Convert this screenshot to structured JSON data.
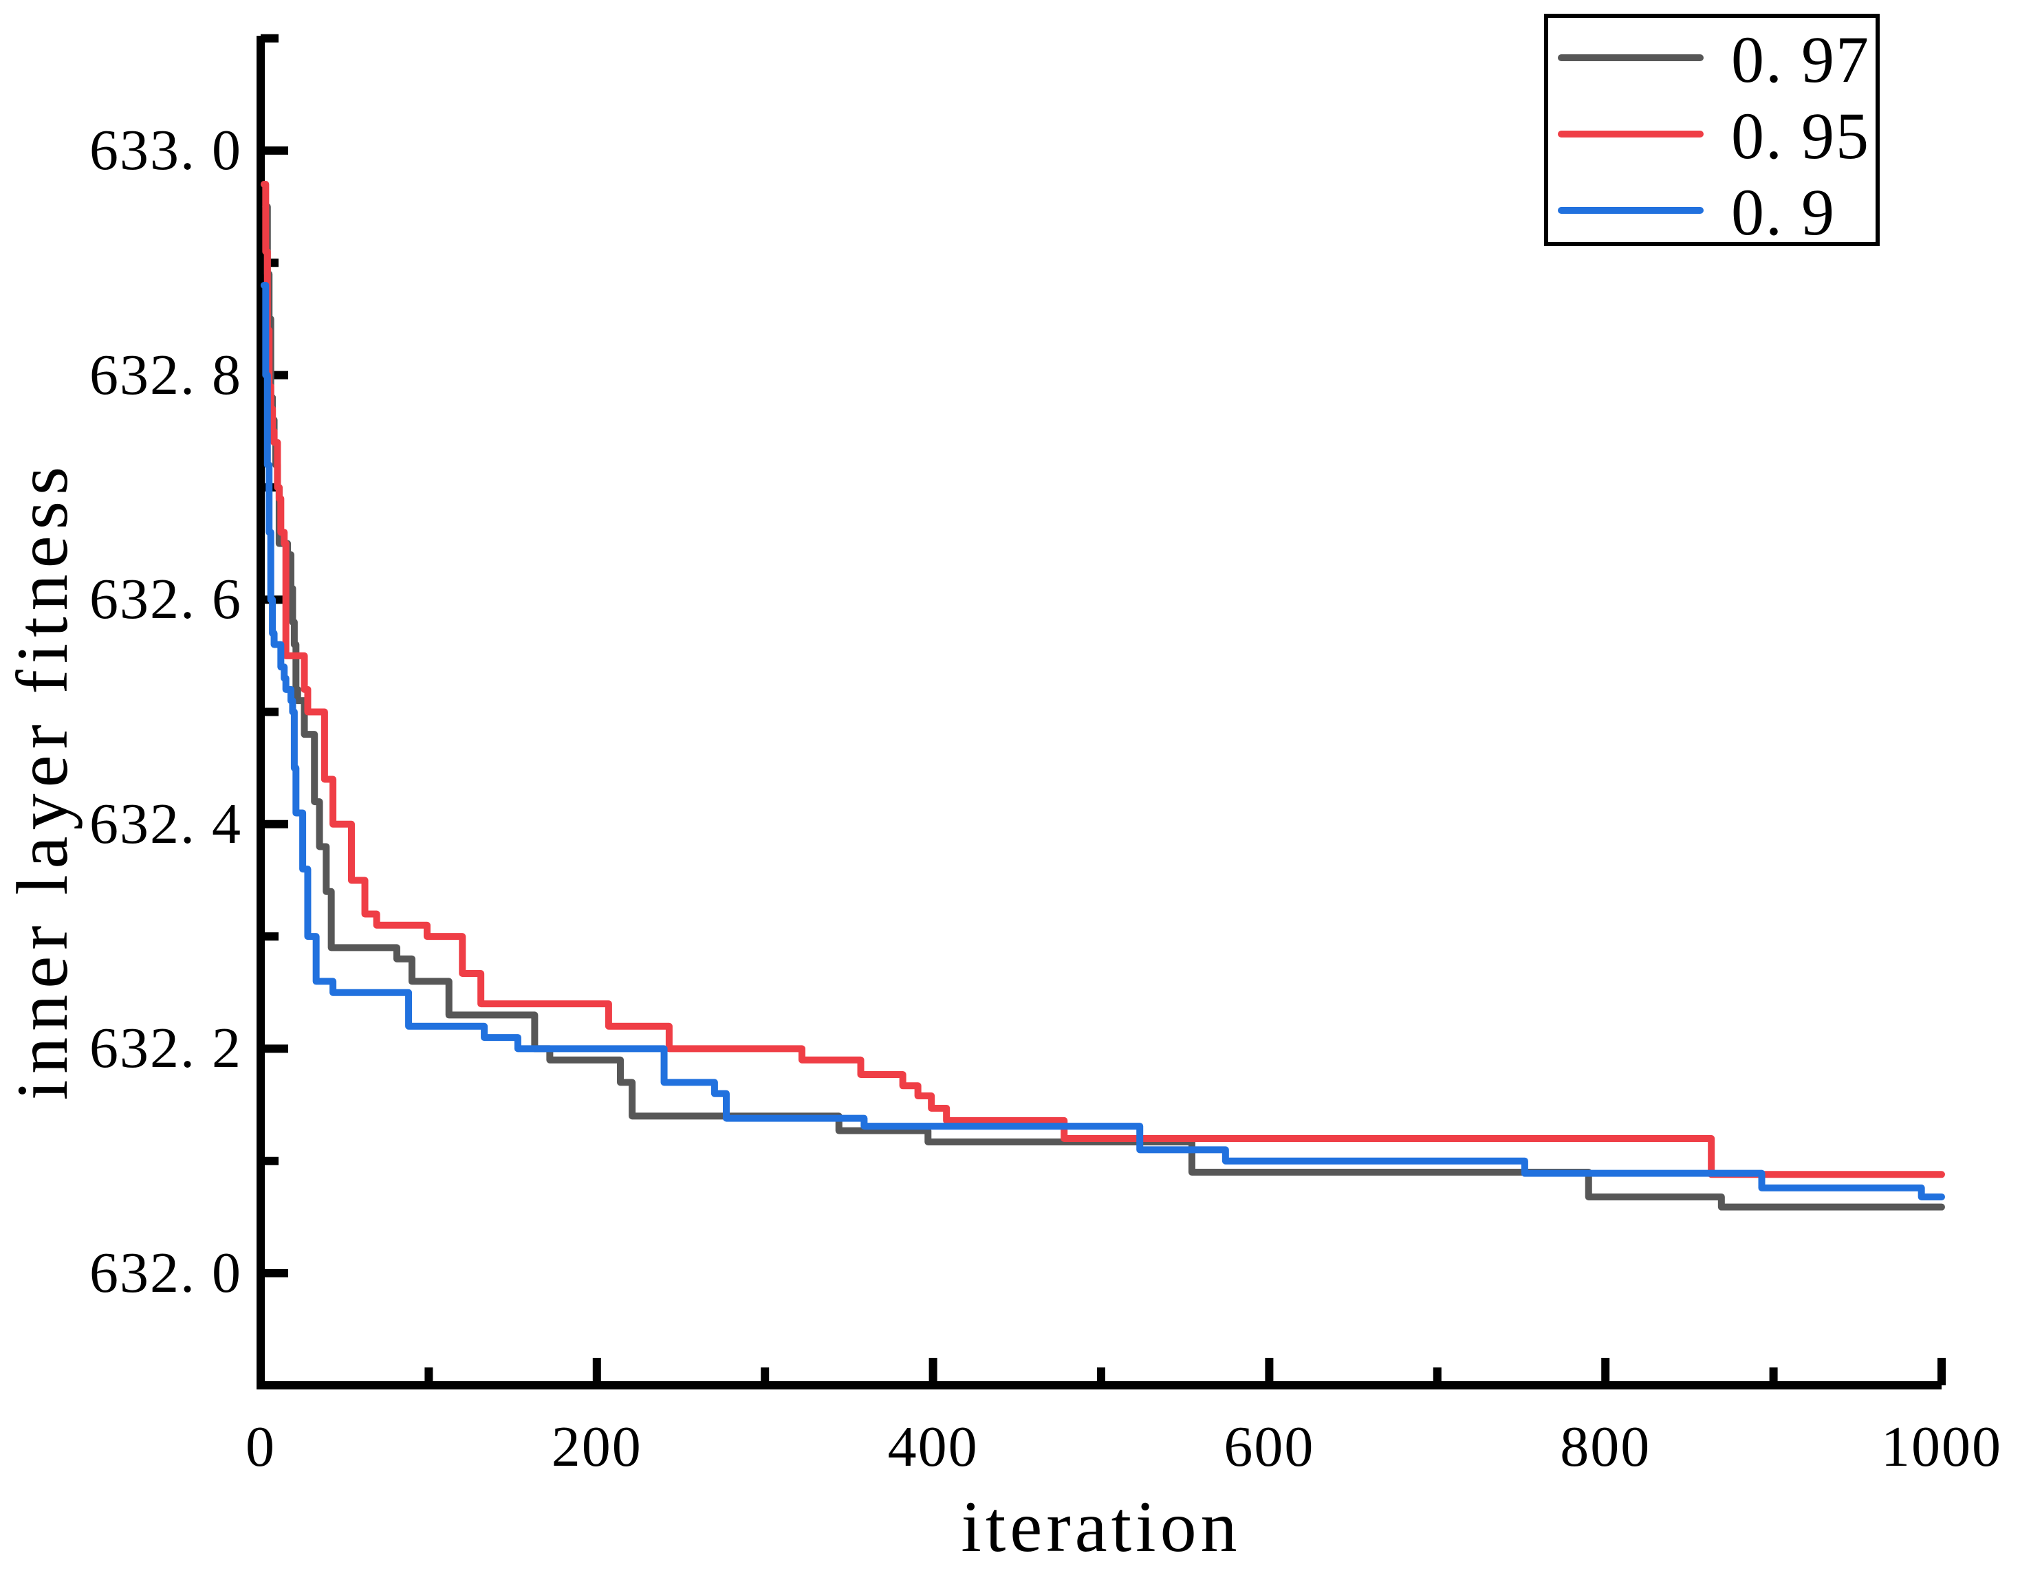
{
  "chart_data": {
    "type": "line",
    "step_mode": "post",
    "title": "",
    "xlabel": "iteration",
    "ylabel": "inner layer fitness",
    "xlim": [
      0,
      1000
    ],
    "ylim": [
      631.9,
      633.1
    ],
    "grid": false,
    "legend_position": "top-right",
    "axis_color": "#000000",
    "x_major_ticks": [
      0,
      200,
      400,
      600,
      800,
      1000
    ],
    "x_tick_labels": [
      "0",
      "200",
      "400",
      "600",
      "800",
      "1000"
    ],
    "x_minor_ticks": [
      100,
      300,
      500,
      700,
      900
    ],
    "y_major_ticks": [
      633.0,
      632.8,
      632.6,
      632.4,
      632.2,
      632.0
    ],
    "y_tick_labels": [
      "633. 0",
      "632. 8",
      "632. 6",
      "632. 4",
      "632. 2",
      "632. 0"
    ],
    "y_minor_ticks": [
      633.1,
      632.9,
      632.7,
      632.5,
      632.3,
      632.1
    ],
    "series": [
      {
        "name": "0. 97",
        "color": "#575757",
        "points": [
          [
            3,
            632.95
          ],
          [
            4,
            632.89
          ],
          [
            5,
            632.85
          ],
          [
            6,
            632.78
          ],
          [
            7,
            632.76
          ],
          [
            8,
            632.74
          ],
          [
            9,
            632.72
          ],
          [
            10,
            632.7
          ],
          [
            11,
            632.65
          ],
          [
            16,
            632.64
          ],
          [
            18,
            632.61
          ],
          [
            19,
            632.58
          ],
          [
            20,
            632.56
          ],
          [
            21,
            632.52
          ],
          [
            22,
            632.51
          ],
          [
            26,
            632.48
          ],
          [
            32,
            632.42
          ],
          [
            35,
            632.38
          ],
          [
            39,
            632.34
          ],
          [
            42,
            632.29
          ],
          [
            81,
            632.28
          ],
          [
            90,
            632.26
          ],
          [
            112,
            632.23
          ],
          [
            163,
            632.2
          ],
          [
            172,
            632.19
          ],
          [
            214,
            632.17
          ],
          [
            221,
            632.14
          ],
          [
            344,
            632.127
          ],
          [
            397,
            632.117
          ],
          [
            554,
            632.09
          ],
          [
            790,
            632.068
          ],
          [
            869,
            632.059
          ],
          [
            1000,
            632.059
          ]
        ]
      },
      {
        "name": "0. 95",
        "color": "#EF3E46",
        "points": [
          [
            2,
            632.97
          ],
          [
            3,
            632.91
          ],
          [
            4,
            632.84
          ],
          [
            5,
            632.79
          ],
          [
            6,
            632.77
          ],
          [
            7,
            632.75
          ],
          [
            8,
            632.74
          ],
          [
            10,
            632.7
          ],
          [
            11,
            632.69
          ],
          [
            12,
            632.66
          ],
          [
            14,
            632.65
          ],
          [
            15,
            632.55
          ],
          [
            26,
            632.52
          ],
          [
            28,
            632.5
          ],
          [
            38,
            632.44
          ],
          [
            43,
            632.4
          ],
          [
            54,
            632.35
          ],
          [
            62,
            632.32
          ],
          [
            69,
            632.31
          ],
          [
            99,
            632.3
          ],
          [
            120,
            632.267
          ],
          [
            131,
            632.24
          ],
          [
            207,
            632.22
          ],
          [
            243,
            632.2
          ],
          [
            322,
            632.19
          ],
          [
            357,
            632.177
          ],
          [
            382,
            632.167
          ],
          [
            391,
            632.158
          ],
          [
            399,
            632.147
          ],
          [
            408,
            632.136
          ],
          [
            478,
            632.12
          ],
          [
            863,
            632.088
          ],
          [
            1000,
            632.088
          ]
        ]
      },
      {
        "name": "0. 9",
        "color": "#2171DE",
        "points": [
          [
            2,
            632.88
          ],
          [
            3,
            632.8
          ],
          [
            4,
            632.72
          ],
          [
            5,
            632.66
          ],
          [
            6,
            632.6
          ],
          [
            7,
            632.57
          ],
          [
            8,
            632.56
          ],
          [
            12,
            632.54
          ],
          [
            14,
            632.53
          ],
          [
            15,
            632.52
          ],
          [
            18,
            632.51
          ],
          [
            19,
            632.5
          ],
          [
            20,
            632.45
          ],
          [
            21,
            632.41
          ],
          [
            25,
            632.36
          ],
          [
            28,
            632.3
          ],
          [
            33,
            632.26
          ],
          [
            43,
            632.25
          ],
          [
            88,
            632.22
          ],
          [
            133,
            632.21
          ],
          [
            153,
            632.2
          ],
          [
            240,
            632.17
          ],
          [
            270,
            632.16
          ],
          [
            277,
            632.138
          ],
          [
            359,
            632.131
          ],
          [
            523,
            632.11
          ],
          [
            574,
            632.1
          ],
          [
            752,
            632.089
          ],
          [
            893,
            632.076
          ],
          [
            988,
            632.068
          ],
          [
            1000,
            632.068
          ]
        ]
      }
    ]
  }
}
